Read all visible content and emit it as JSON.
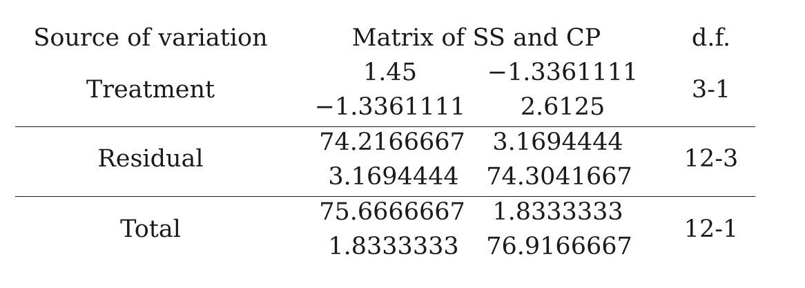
{
  "table": {
    "headers": {
      "source": "Source of variation",
      "matrix": "Matrix of SS and CP",
      "df": "d.f."
    },
    "rows": [
      {
        "source": "Treatment",
        "matrix": [
          [
            "1.45",
            "−1.3361111"
          ],
          [
            "−1.3361111",
            "2.6125"
          ]
        ],
        "df": "3-1"
      },
      {
        "source": "Residual",
        "matrix": [
          [
            "74.2166667",
            "3.1694444"
          ],
          [
            "3.1694444",
            "74.3041667"
          ]
        ],
        "df": "12-3"
      },
      {
        "source": "Total",
        "matrix": [
          [
            "75.6666667",
            "1.8333333"
          ],
          [
            "1.8333333",
            "76.9166667"
          ]
        ],
        "df": "12-1"
      }
    ]
  }
}
